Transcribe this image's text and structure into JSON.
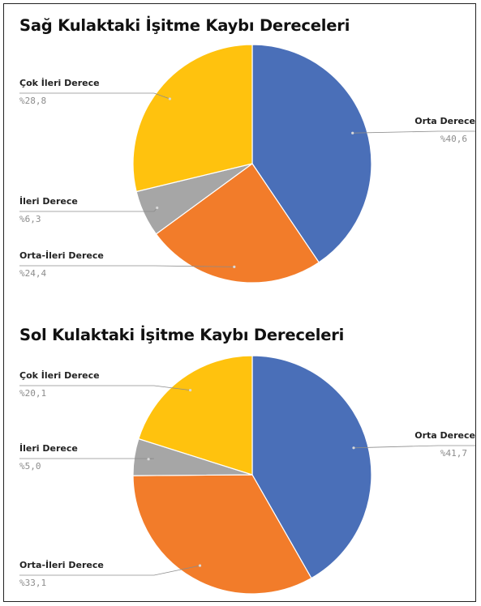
{
  "chart_data": [
    {
      "type": "pie",
      "title": "Sağ Kulaktaki İşitme Kaybı Dereceleri",
      "slices": [
        {
          "label": "Orta Derece",
          "value_label": "%40,6",
          "value": 40.6,
          "color": "#4a6fb8"
        },
        {
          "label": "Orta-İleri Derece",
          "value_label": "%24,4",
          "value": 24.4,
          "color": "#f27c2a"
        },
        {
          "label": "İleri Derece",
          "value_label": "%6,3",
          "value": 6.3,
          "color": "#a6a6a6"
        },
        {
          "label": "Çok İleri Derece",
          "value_label": "%28,8",
          "value": 28.8,
          "color": "#ffc20e"
        }
      ]
    },
    {
      "type": "pie",
      "title": "Sol Kulaktaki İşitme Kaybı Dereceleri",
      "slices": [
        {
          "label": "Orta Derece",
          "value_label": "%41,7",
          "value": 41.7,
          "color": "#4a6fb8"
        },
        {
          "label": "Orta-İleri Derece",
          "value_label": "%33,1",
          "value": 33.1,
          "color": "#f27c2a"
        },
        {
          "label": "İleri Derece",
          "value_label": "%5,0",
          "value": 5.0,
          "color": "#a6a6a6"
        },
        {
          "label": "Çok İleri Derece",
          "value_label": "%20,1",
          "value": 20.1,
          "color": "#ffc20e"
        }
      ]
    }
  ]
}
